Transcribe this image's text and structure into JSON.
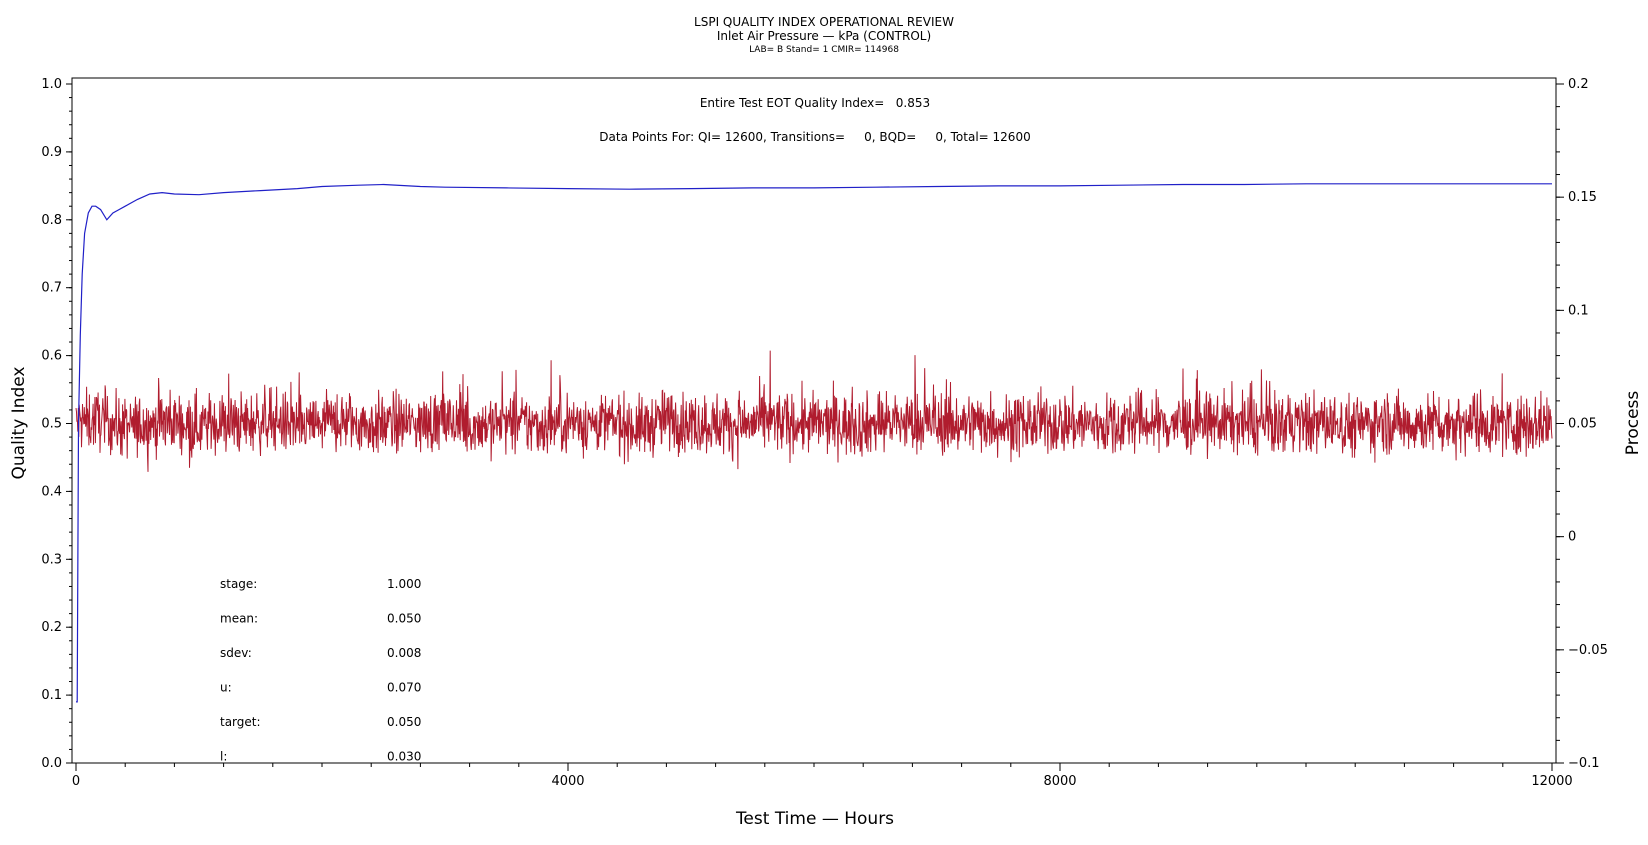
{
  "chart_data": {
    "type": "line",
    "title": "LSPI QUALITY INDEX OPERATIONAL REVIEW",
    "subtitle": "Inlet Air Pressure — kPa (CONTROL)",
    "meta_line": "LAB= B Stand= 1 CMIR= 114968",
    "xlabel": "Test Time — Hours",
    "ylabel_left": "Quality Index",
    "ylabel_right": "Process",
    "xlim": [
      0,
      12000
    ],
    "ylim_left": [
      0,
      1.0
    ],
    "ylim_right": [
      -0.1,
      0.2
    ],
    "x_ticks": [
      {
        "value": 0,
        "label": "0"
      },
      {
        "value": 4000,
        "label": "4000"
      },
      {
        "value": 8000,
        "label": "8000"
      },
      {
        "value": 12000,
        "label": "12000"
      }
    ],
    "y_left_ticks": [
      {
        "value": 0.0,
        "label": "0.0"
      },
      {
        "value": 0.1,
        "label": "0.1"
      },
      {
        "value": 0.2,
        "label": "0.2"
      },
      {
        "value": 0.3,
        "label": "0.3"
      },
      {
        "value": 0.4,
        "label": "0.4"
      },
      {
        "value": 0.5,
        "label": "0.5"
      },
      {
        "value": 0.6,
        "label": "0.6"
      },
      {
        "value": 0.7,
        "label": "0.7"
      },
      {
        "value": 0.8,
        "label": "0.8"
      },
      {
        "value": 0.9,
        "label": "0.9"
      },
      {
        "value": 1.0,
        "label": "1.0"
      }
    ],
    "y_right_ticks": [
      {
        "value": -0.1,
        "label": "−0.1"
      },
      {
        "value": -0.05,
        "label": "−0.05"
      },
      {
        "value": 0,
        "label": "0"
      },
      {
        "value": 0.05,
        "label": "0.05"
      },
      {
        "value": 0.1,
        "label": "0.1"
      },
      {
        "value": 0.15,
        "label": "0.15"
      },
      {
        "value": 0.2,
        "label": "0.2"
      }
    ],
    "annotations": {
      "quality_index": "Entire Test EOT Quality Index=   0.853",
      "data_points": "Data Points For: QI= 12600, Transitions=     0, BQD=     0, Total= 12600"
    },
    "stats": [
      {
        "label": "stage:",
        "value": "1.000"
      },
      {
        "label": "mean:",
        "value": "0.050"
      },
      {
        "label": "sdev:",
        "value": "0.008"
      },
      {
        "label": "u:",
        "value": "0.070"
      },
      {
        "label": "target:",
        "value": "0.050"
      },
      {
        "label": "l:",
        "value": "0.030"
      }
    ],
    "series": [
      {
        "axis": "left",
        "color": "#2020c8",
        "x": [
          10,
          20,
          35,
          50,
          70,
          100,
          130,
          160,
          200,
          250,
          300,
          350,
          400,
          500,
          600,
          700,
          800,
          1000,
          1200,
          1500,
          1800,
          2000,
          2300,
          2500,
          2800,
          3000,
          3500,
          4000,
          4500,
          5000,
          5500,
          6000,
          6500,
          7000,
          7500,
          8000,
          8500,
          9000,
          9500,
          10000,
          10500,
          11000,
          11500,
          12000
        ],
        "y": [
          0.09,
          0.5,
          0.63,
          0.72,
          0.78,
          0.81,
          0.82,
          0.82,
          0.815,
          0.8,
          0.81,
          0.815,
          0.82,
          0.83,
          0.838,
          0.84,
          0.838,
          0.837,
          0.84,
          0.843,
          0.846,
          0.849,
          0.851,
          0.852,
          0.849,
          0.848,
          0.847,
          0.846,
          0.845,
          0.846,
          0.847,
          0.847,
          0.848,
          0.849,
          0.85,
          0.85,
          0.851,
          0.852,
          0.852,
          0.853,
          0.853,
          0.853,
          0.853,
          0.853
        ]
      },
      {
        "axis": "right",
        "color": "#b01c2e",
        "description_stats": {
          "mean": 0.05,
          "sdev": 0.008
        },
        "x": [
          0,
          200,
          400,
          600,
          800,
          1000,
          1200,
          1400,
          1600,
          1800,
          2000,
          2200,
          2400,
          2600,
          2800,
          3000,
          3200,
          3400,
          3600,
          3800,
          4000,
          4200,
          4400,
          4600,
          4800,
          5000,
          5200,
          5400,
          5600,
          5800,
          6000,
          6200,
          6400,
          6600,
          6800,
          7000,
          7200,
          7400,
          7600,
          7800,
          8000,
          8200,
          8400,
          8600,
          8800,
          9000,
          9200,
          9400,
          9600,
          9800,
          10000,
          10200,
          10400,
          10600,
          10800,
          11000,
          11200,
          11400,
          11600,
          11800,
          12000
        ],
        "y": [
          0.05,
          0.052,
          0.048,
          0.05,
          0.051,
          0.049,
          0.05,
          0.05,
          0.052,
          0.048,
          0.05,
          0.051,
          0.049,
          0.05,
          0.05,
          0.051,
          0.049,
          0.05,
          0.05,
          0.049,
          0.051,
          0.05,
          0.05,
          0.048,
          0.052,
          0.05,
          0.05,
          0.049,
          0.051,
          0.05,
          0.05,
          0.05,
          0.049,
          0.051,
          0.05,
          0.05,
          0.05,
          0.051,
          0.049,
          0.05,
          0.05,
          0.05,
          0.049,
          0.051,
          0.05,
          0.05,
          0.05,
          0.051,
          0.049,
          0.05,
          0.05,
          0.05,
          0.049,
          0.051,
          0.05,
          0.05,
          0.05,
          0.051,
          0.049,
          0.05,
          0.05
        ]
      }
    ]
  }
}
